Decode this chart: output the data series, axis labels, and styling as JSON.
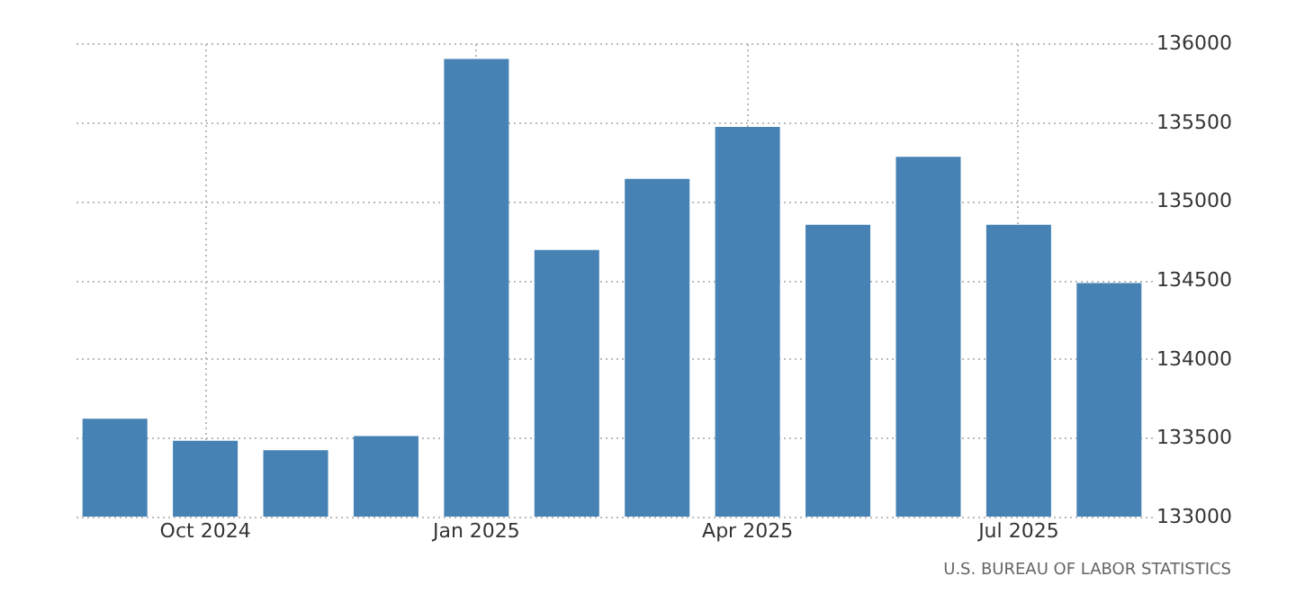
{
  "chart_data": {
    "type": "bar",
    "categories": [
      null,
      "Oct 2024",
      null,
      null,
      "Jan 2025",
      null,
      null,
      "Apr 2025",
      null,
      null,
      "Jul 2025",
      null
    ],
    "values": [
      133620,
      133480,
      133420,
      133510,
      135900,
      134690,
      135140,
      135470,
      134850,
      135280,
      134850,
      134480
    ],
    "color": "#4682b4",
    "ylim": [
      133000,
      136000
    ],
    "yticks": [
      133000,
      133500,
      134000,
      134500,
      135000,
      135500,
      136000
    ],
    "grid": true,
    "annotations": [
      "U.S. BUREAU OF LABOR STATISTICS"
    ]
  }
}
